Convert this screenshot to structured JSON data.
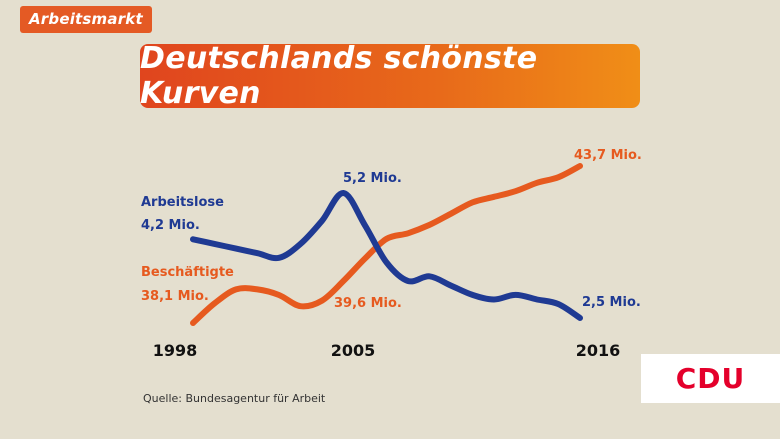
{
  "tag": "Arbeitsmarkt",
  "title": "Deutschlands schönste Kurven",
  "source": "Quelle: Bundesagentur für Arbeit",
  "logo": "CDU",
  "colors": {
    "blue": "#1f3a93",
    "orange": "#e65a1f",
    "tag": "#e45a24",
    "background": "#e4dfcf",
    "logo": "#e4002b"
  },
  "chart_data": {
    "type": "line",
    "title": "Deutschlands schönste Kurven",
    "x_ticks": [
      "1998",
      "2005",
      "2016"
    ],
    "xlim": [
      1998,
      2016
    ],
    "grid": false,
    "legend": "inline labels",
    "series": [
      {
        "name": "Arbeitslose",
        "color": "#1f3a93",
        "x": [
          1998,
          1999,
          2000,
          2001,
          2002,
          2003,
          2004,
          2005,
          2006,
          2007,
          2008,
          2009,
          2010,
          2011,
          2012,
          2013,
          2014,
          2015,
          2016
        ],
        "y": [
          4.2,
          4.1,
          4.0,
          3.9,
          3.8,
          4.1,
          4.6,
          5.2,
          4.5,
          3.7,
          3.3,
          3.4,
          3.2,
          3.0,
          2.9,
          3.0,
          2.9,
          2.8,
          2.5
        ],
        "labels": [
          {
            "text": "4,2 Mio.",
            "at": "start"
          },
          {
            "text": "5,2 Mio.",
            "at": "peak"
          },
          {
            "text": "2,5 Mio.",
            "at": "end"
          }
        ]
      },
      {
        "name": "Beschäftigte",
        "color": "#e65a1f",
        "x": [
          1998,
          1999,
          2000,
          2001,
          2002,
          2003,
          2004,
          2005,
          2006,
          2007,
          2008,
          2009,
          2010,
          2011,
          2012,
          2013,
          2014,
          2015,
          2016
        ],
        "y": [
          38.1,
          38.8,
          39.3,
          39.3,
          39.1,
          38.7,
          38.9,
          39.6,
          40.4,
          41.1,
          41.3,
          41.6,
          42.0,
          42.4,
          42.6,
          42.8,
          43.1,
          43.3,
          43.7
        ],
        "labels": [
          {
            "text": "38,1 Mio.",
            "at": "start"
          },
          {
            "text": "39,6 Mio.",
            "at": "2005"
          },
          {
            "text": "43,7 Mio.",
            "at": "end"
          }
        ]
      }
    ]
  }
}
